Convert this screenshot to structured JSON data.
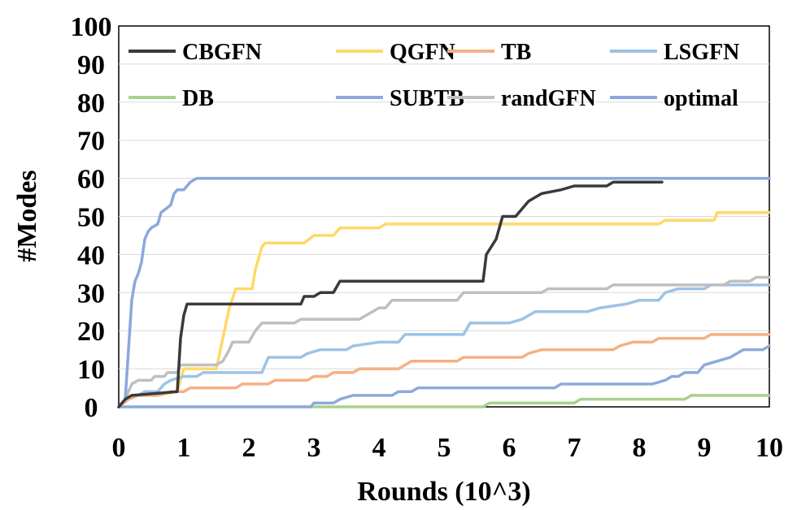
{
  "chart_data": {
    "type": "line",
    "xlabel": "Rounds (10^3)",
    "ylabel": "#Modes",
    "xlim": [
      0,
      10
    ],
    "ylim": [
      0,
      100
    ],
    "x_ticks": [
      "0",
      "1",
      "2",
      "3",
      "4",
      "5",
      "6",
      "7",
      "8",
      "9",
      "10"
    ],
    "y_ticks": [
      "0",
      "10",
      "20",
      "30",
      "40",
      "50",
      "60",
      "70",
      "80",
      "90",
      "100"
    ],
    "legend_position": "top",
    "series": [
      {
        "name": "CBGFN",
        "color": "#3a3a3a",
        "points": [
          [
            0,
            0
          ],
          [
            0.1,
            2
          ],
          [
            0.2,
            3
          ],
          [
            0.9,
            4
          ],
          [
            0.95,
            18
          ],
          [
            1.0,
            24
          ],
          [
            1.05,
            27
          ],
          [
            2.5,
            27
          ],
          [
            2.8,
            27
          ],
          [
            2.85,
            29
          ],
          [
            3.0,
            29
          ],
          [
            3.1,
            30
          ],
          [
            3.3,
            30
          ],
          [
            3.4,
            33
          ],
          [
            5.6,
            33
          ],
          [
            5.65,
            40
          ],
          [
            5.8,
            44
          ],
          [
            5.9,
            50
          ],
          [
            6.1,
            50
          ],
          [
            6.2,
            52
          ],
          [
            6.3,
            54
          ],
          [
            6.4,
            55
          ],
          [
            6.5,
            56
          ],
          [
            6.8,
            57
          ],
          [
            7.0,
            58
          ],
          [
            7.5,
            58
          ],
          [
            7.6,
            59
          ],
          [
            8.35,
            59
          ]
        ]
      },
      {
        "name": "QGFN",
        "color": "#ffd966",
        "points": [
          [
            0,
            0
          ],
          [
            0.15,
            2
          ],
          [
            0.3,
            3
          ],
          [
            0.6,
            3
          ],
          [
            0.9,
            4
          ],
          [
            1.0,
            10
          ],
          [
            1.5,
            10
          ],
          [
            1.6,
            18
          ],
          [
            1.7,
            26
          ],
          [
            1.8,
            31
          ],
          [
            2.05,
            31
          ],
          [
            2.1,
            36
          ],
          [
            2.2,
            42
          ],
          [
            2.25,
            43
          ],
          [
            2.85,
            43
          ],
          [
            3.0,
            45
          ],
          [
            3.3,
            45
          ],
          [
            3.4,
            47
          ],
          [
            4.0,
            47
          ],
          [
            4.1,
            48
          ],
          [
            8.3,
            48
          ],
          [
            8.4,
            49
          ],
          [
            9.15,
            49
          ],
          [
            9.2,
            51
          ],
          [
            10.0,
            51
          ]
        ]
      },
      {
        "name": "TB",
        "color": "#f4b183",
        "points": [
          [
            0,
            0
          ],
          [
            0.15,
            2
          ],
          [
            0.3,
            3
          ],
          [
            0.6,
            3
          ],
          [
            0.8,
            4
          ],
          [
            1.0,
            4
          ],
          [
            1.1,
            5
          ],
          [
            1.8,
            5
          ],
          [
            1.9,
            6
          ],
          [
            2.3,
            6
          ],
          [
            2.4,
            7
          ],
          [
            2.9,
            7
          ],
          [
            3.0,
            8
          ],
          [
            3.2,
            8
          ],
          [
            3.3,
            9
          ],
          [
            3.6,
            9
          ],
          [
            3.7,
            10
          ],
          [
            4.3,
            10
          ],
          [
            4.4,
            11
          ],
          [
            4.5,
            12
          ],
          [
            5.2,
            12
          ],
          [
            5.3,
            13
          ],
          [
            6.2,
            13
          ],
          [
            6.3,
            14
          ],
          [
            6.5,
            15
          ],
          [
            7.6,
            15
          ],
          [
            7.7,
            16
          ],
          [
            7.9,
            17
          ],
          [
            8.2,
            17
          ],
          [
            8.3,
            18
          ],
          [
            9.0,
            18
          ],
          [
            9.1,
            19
          ],
          [
            10.0,
            19
          ]
        ]
      },
      {
        "name": "LSGFN",
        "color": "#9dc3e6",
        "points": [
          [
            0,
            0
          ],
          [
            0.1,
            2
          ],
          [
            0.2,
            3
          ],
          [
            0.3,
            3
          ],
          [
            0.4,
            4
          ],
          [
            0.6,
            4
          ],
          [
            0.7,
            6
          ],
          [
            0.8,
            7
          ],
          [
            1.0,
            8
          ],
          [
            1.2,
            8
          ],
          [
            1.3,
            9
          ],
          [
            2.2,
            9
          ],
          [
            2.3,
            13
          ],
          [
            2.8,
            13
          ],
          [
            2.9,
            14
          ],
          [
            3.1,
            15
          ],
          [
            3.5,
            15
          ],
          [
            3.6,
            16
          ],
          [
            4.0,
            17
          ],
          [
            4.3,
            17
          ],
          [
            4.4,
            19
          ],
          [
            5.3,
            19
          ],
          [
            5.4,
            22
          ],
          [
            6.0,
            22
          ],
          [
            6.2,
            23
          ],
          [
            6.4,
            25
          ],
          [
            7.2,
            25
          ],
          [
            7.4,
            26
          ],
          [
            7.8,
            27
          ],
          [
            8.0,
            28
          ],
          [
            8.3,
            28
          ],
          [
            8.4,
            30
          ],
          [
            8.6,
            31
          ],
          [
            9.0,
            31
          ],
          [
            9.1,
            32
          ],
          [
            10.0,
            32
          ]
        ]
      },
      {
        "name": "DB",
        "color": "#a9d18e",
        "points": [
          [
            0,
            0
          ],
          [
            5.6,
            0
          ],
          [
            5.7,
            1
          ],
          [
            7.0,
            1
          ],
          [
            7.1,
            2
          ],
          [
            8.7,
            2
          ],
          [
            8.8,
            3
          ],
          [
            10.0,
            3
          ]
        ]
      },
      {
        "name": "SUBTB",
        "color": "#8ea9db",
        "points": [
          [
            0,
            0
          ],
          [
            2.95,
            0
          ],
          [
            3.0,
            1
          ],
          [
            3.3,
            1
          ],
          [
            3.4,
            2
          ],
          [
            3.6,
            3
          ],
          [
            4.2,
            3
          ],
          [
            4.3,
            4
          ],
          [
            4.5,
            4
          ],
          [
            4.6,
            5
          ],
          [
            6.7,
            5
          ],
          [
            6.8,
            6
          ],
          [
            8.2,
            6
          ],
          [
            8.4,
            7
          ],
          [
            8.5,
            8
          ],
          [
            8.6,
            8
          ],
          [
            8.7,
            9
          ],
          [
            8.9,
            9
          ],
          [
            9.0,
            11
          ],
          [
            9.2,
            12
          ],
          [
            9.4,
            13
          ],
          [
            9.6,
            15
          ],
          [
            9.9,
            15
          ],
          [
            10.0,
            16
          ]
        ]
      },
      {
        "name": "randGFN",
        "color": "#bfbfbf",
        "points": [
          [
            0,
            0
          ],
          [
            0.1,
            2
          ],
          [
            0.15,
            4
          ],
          [
            0.2,
            6
          ],
          [
            0.3,
            7
          ],
          [
            0.5,
            7
          ],
          [
            0.55,
            8
          ],
          [
            0.7,
            8
          ],
          [
            0.75,
            9
          ],
          [
            0.9,
            9
          ],
          [
            0.95,
            11
          ],
          [
            1.1,
            11
          ],
          [
            1.5,
            11
          ],
          [
            1.6,
            12
          ],
          [
            1.7,
            15
          ],
          [
            1.75,
            17
          ],
          [
            2.0,
            17
          ],
          [
            2.1,
            20
          ],
          [
            2.2,
            22
          ],
          [
            2.7,
            22
          ],
          [
            2.8,
            23
          ],
          [
            3.7,
            23
          ],
          [
            3.8,
            24
          ],
          [
            3.9,
            25
          ],
          [
            4.0,
            26
          ],
          [
            4.1,
            26
          ],
          [
            4.2,
            28
          ],
          [
            5.2,
            28
          ],
          [
            5.3,
            30
          ],
          [
            6.5,
            30
          ],
          [
            6.6,
            31
          ],
          [
            7.5,
            31
          ],
          [
            7.6,
            32
          ],
          [
            9.3,
            32
          ],
          [
            9.4,
            33
          ],
          [
            9.7,
            33
          ],
          [
            9.8,
            34
          ],
          [
            10.0,
            34
          ]
        ]
      },
      {
        "name": "optimal",
        "color": "#8aa8dc",
        "points": [
          [
            0,
            0
          ],
          [
            0.1,
            2
          ],
          [
            0.15,
            15
          ],
          [
            0.2,
            28
          ],
          [
            0.25,
            33
          ],
          [
            0.3,
            35
          ],
          [
            0.35,
            38
          ],
          [
            0.4,
            44
          ],
          [
            0.45,
            46
          ],
          [
            0.5,
            47
          ],
          [
            0.6,
            48
          ],
          [
            0.65,
            51
          ],
          [
            0.8,
            53
          ],
          [
            0.85,
            56
          ],
          [
            0.9,
            57
          ],
          [
            1.0,
            57
          ],
          [
            1.05,
            58
          ],
          [
            1.1,
            59
          ],
          [
            1.2,
            60
          ],
          [
            10.0,
            60
          ]
        ]
      }
    ]
  }
}
